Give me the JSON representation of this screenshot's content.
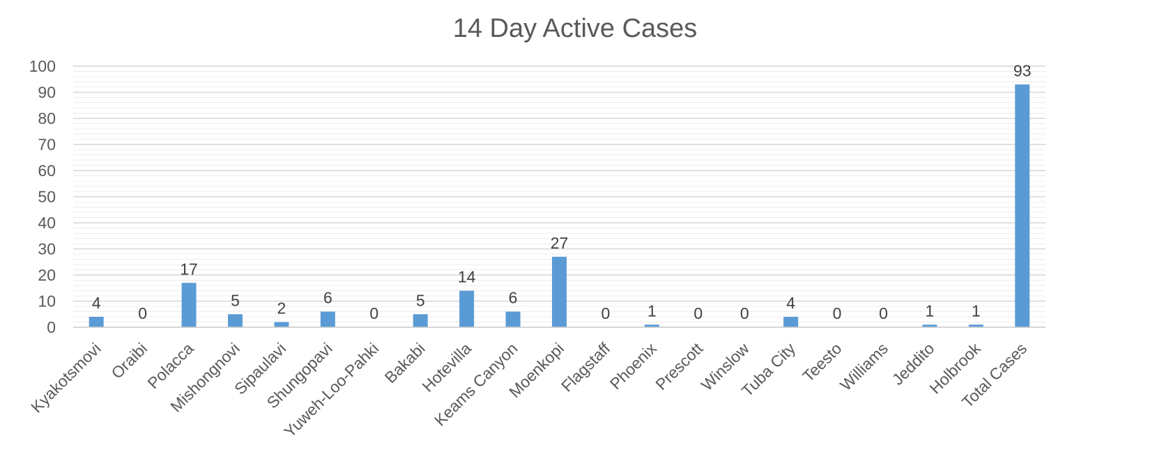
{
  "chart_data": {
    "type": "bar",
    "title": "14 Day Active Cases",
    "xlabel": "",
    "ylabel": "",
    "ylim": [
      0,
      100
    ],
    "yticks": [
      0,
      10,
      20,
      30,
      40,
      50,
      60,
      70,
      80,
      90,
      100
    ],
    "grid": true,
    "minor_grid": true,
    "legend": "none",
    "bar_color": "#5B9BD5",
    "categories": [
      "Kyakotsmovi",
      "Oraibi",
      "Polacca",
      "Mishongnovi",
      "Sipaulavi",
      "Shungopavi",
      "Yuweh-Loo-Pahki",
      "Bakabi",
      "Hotevilla",
      "Keams Canyon",
      "Moenkopi",
      "Flagstaff",
      "Phoenix",
      "Prescott",
      "Winslow",
      "Tuba City",
      "Teesto",
      "Williams",
      "Jeddito",
      "Holbrook",
      "Total Cases"
    ],
    "values": [
      4,
      0,
      17,
      5,
      2,
      6,
      0,
      5,
      14,
      6,
      27,
      0,
      1,
      0,
      0,
      4,
      0,
      0,
      1,
      1,
      93
    ]
  }
}
